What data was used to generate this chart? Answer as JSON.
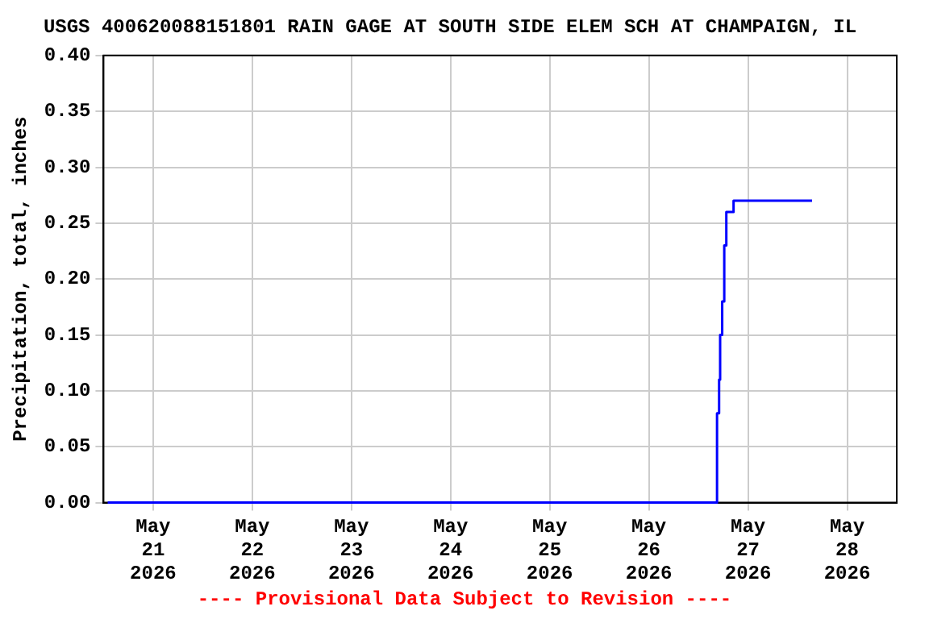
{
  "chart_data": {
    "type": "step",
    "title": "USGS 400620088151801 RAIN GAGE AT SOUTH SIDE ELEM SCH AT CHAMPAIGN, IL",
    "ylabel": "Precipitation, total, inches",
    "x": [
      "2026-05-20T13:00",
      "2026-05-26T16:30",
      "2026-05-26T17:00",
      "2026-05-26T17:15",
      "2026-05-26T17:45",
      "2026-05-26T18:15",
      "2026-05-26T18:45",
      "2026-05-26T20:30",
      "2026-05-27T15:30"
    ],
    "series": [
      {
        "color": "#0000ff",
        "values": [
          0,
          0.08,
          0.11,
          0.15,
          0.18,
          0.23,
          0.26,
          0.27,
          0.27
        ]
      }
    ],
    "xlim": [
      "2026-05-20T12:00",
      "2026-05-28T12:00"
    ],
    "xticks": [
      {
        "value": "2026-05-21",
        "label": "May 21 2026"
      },
      {
        "value": "2026-05-22",
        "label": "May 22 2026"
      },
      {
        "value": "2026-05-23",
        "label": "May 23 2026"
      },
      {
        "value": "2026-05-24",
        "label": "May 24 2026"
      },
      {
        "value": "2026-05-25",
        "label": "May 25 2026"
      },
      {
        "value": "2026-05-26",
        "label": "May 26 2026"
      },
      {
        "value": "2026-05-27",
        "label": "May 27 2026"
      },
      {
        "value": "2026-05-28",
        "label": "May 28 2026"
      }
    ],
    "ylim": [
      0,
      0.4
    ],
    "yticks": [
      {
        "value": 0,
        "label": "0.00"
      },
      {
        "value": 0.05,
        "label": "0.05"
      },
      {
        "value": 0.1,
        "label": "0.10"
      },
      {
        "value": 0.15,
        "label": "0.15"
      },
      {
        "value": 0.2,
        "label": "0.20"
      },
      {
        "value": 0.25,
        "label": "0.25"
      },
      {
        "value": 0.3,
        "label": "0.30"
      },
      {
        "value": 0.35,
        "label": "0.35"
      },
      {
        "value": 0.4,
        "label": "0.40"
      }
    ],
    "grid": true,
    "legend": false,
    "marker": "none",
    "line_style": "solid",
    "annotations": [
      "---- Provisional Data Subject to Revision ----"
    ]
  }
}
